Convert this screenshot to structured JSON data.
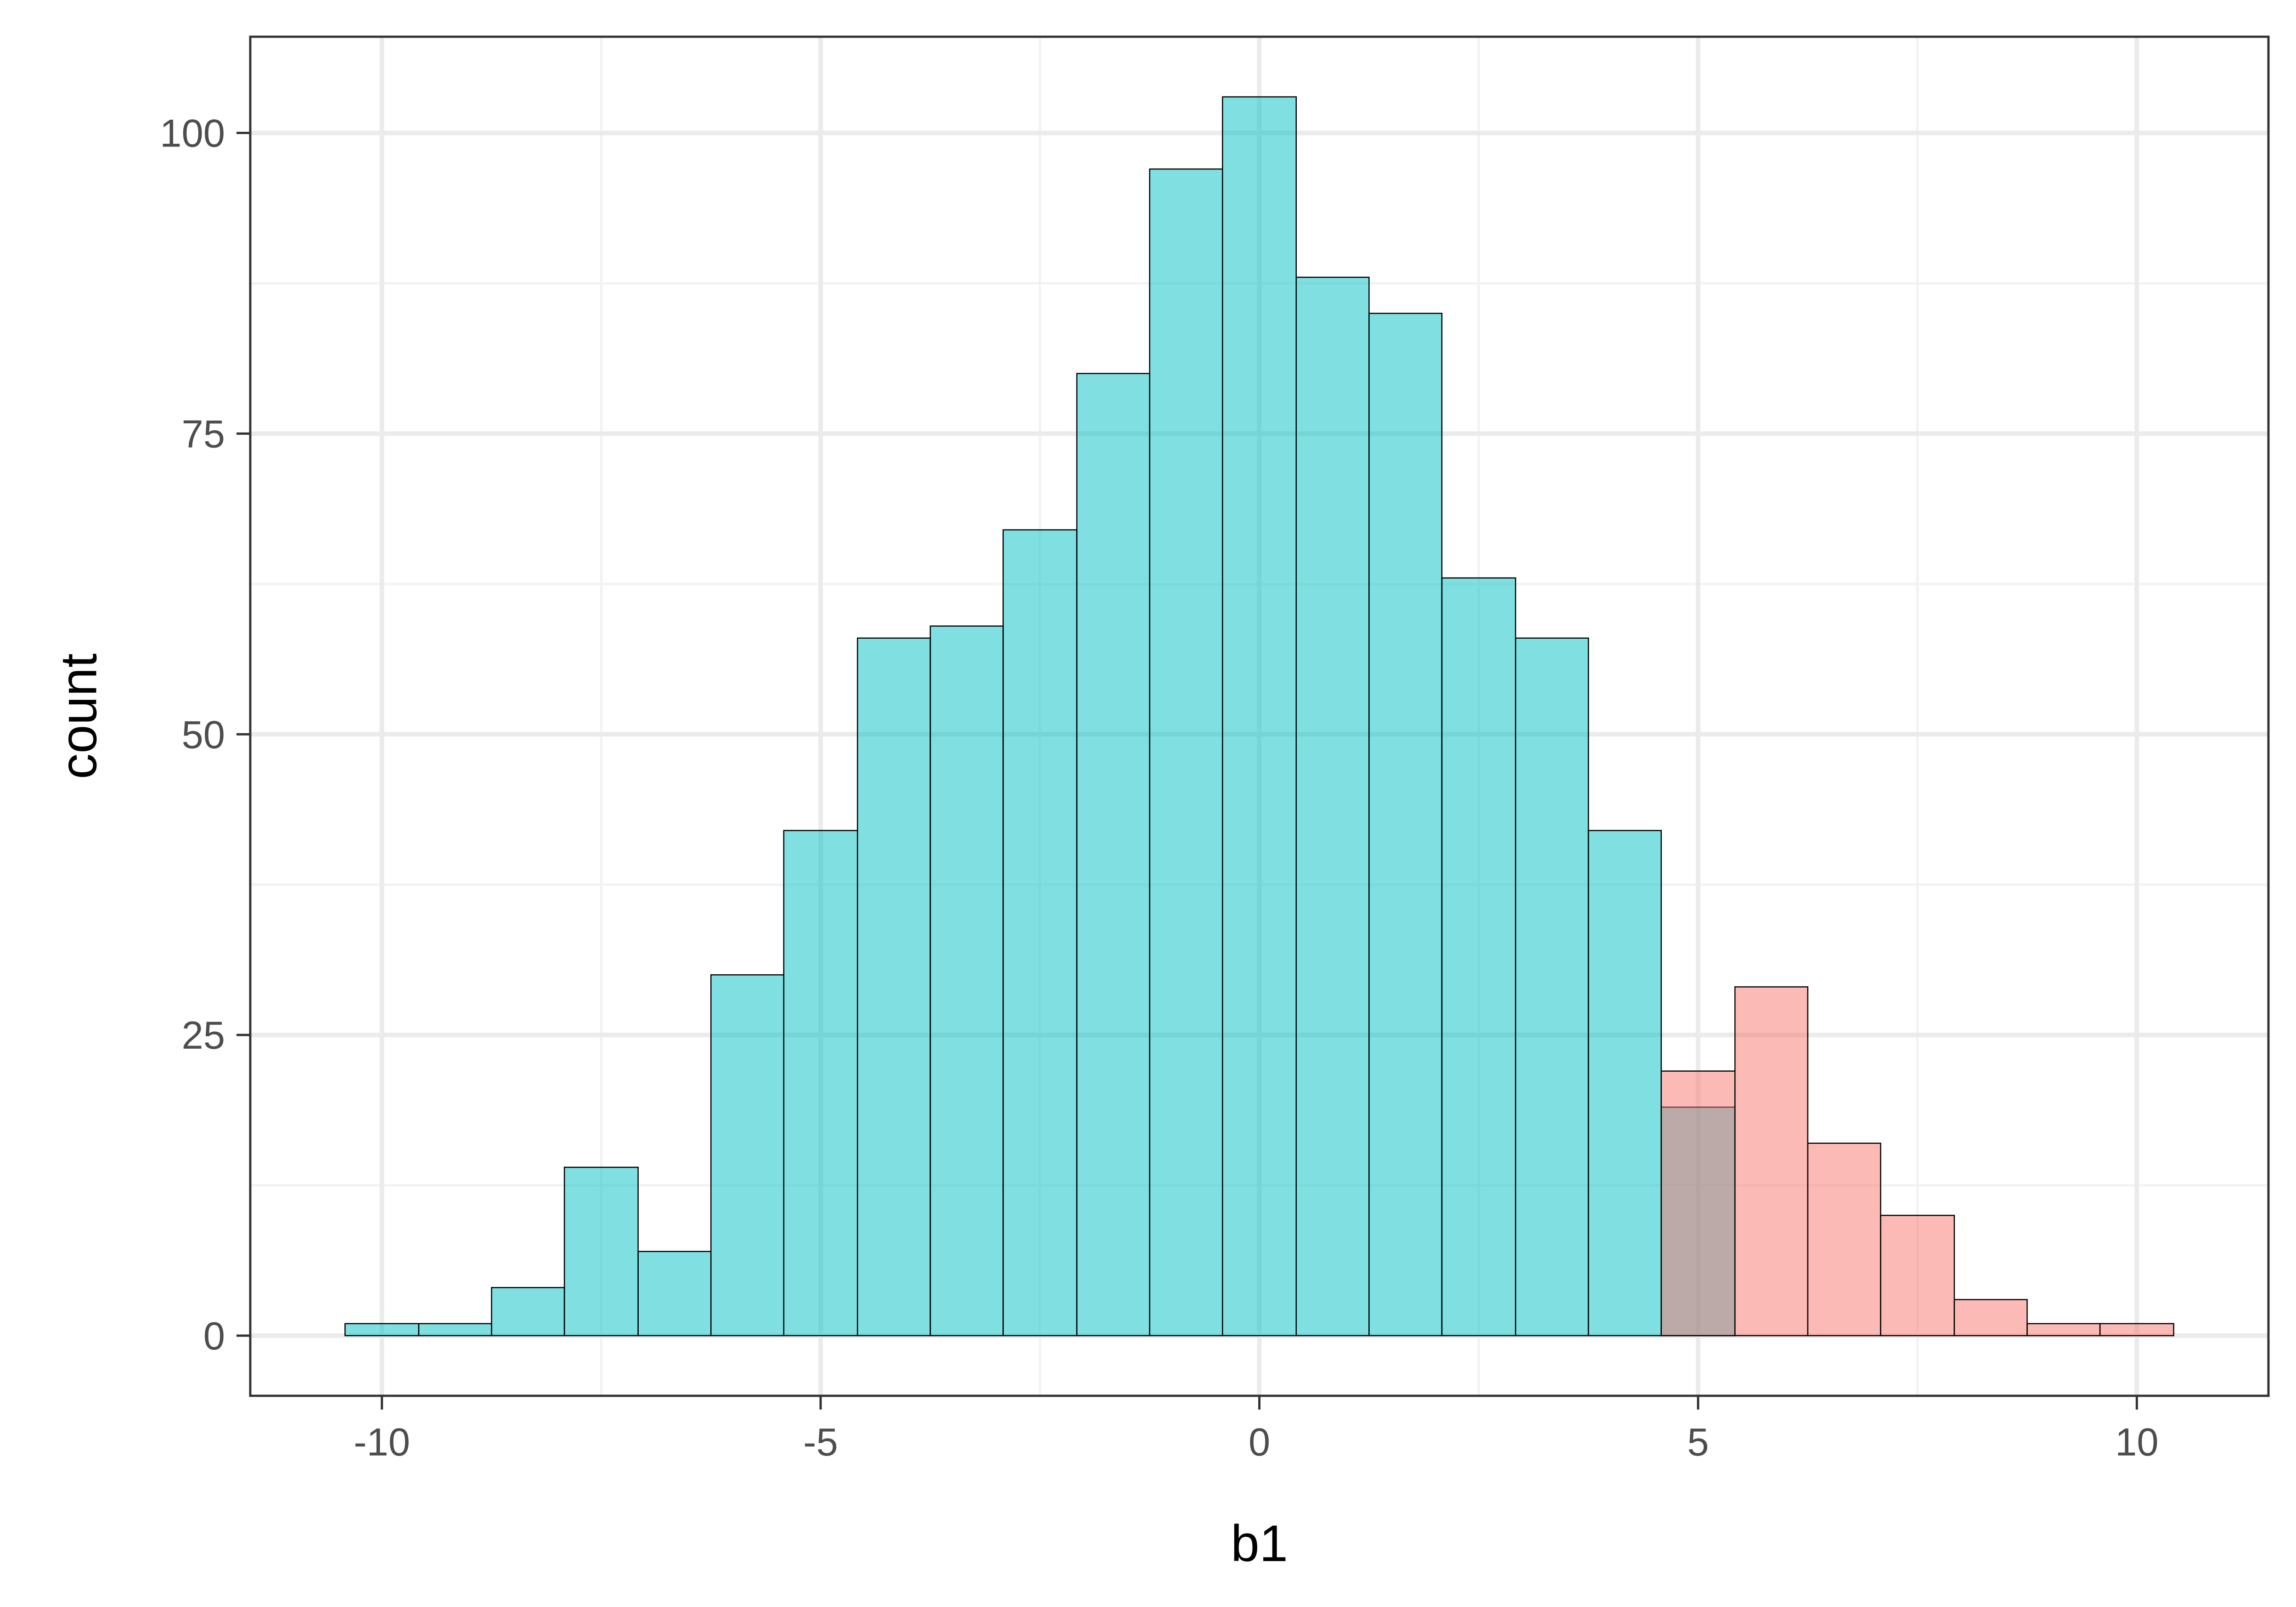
{
  "chart_data": {
    "type": "bar",
    "subtype": "histogram",
    "title": "",
    "xlabel": "b1",
    "ylabel": "count",
    "xlim": [
      -11.5,
      11.5
    ],
    "ylim": [
      -5,
      108
    ],
    "x_ticks": [
      -10,
      -5,
      0,
      5,
      10
    ],
    "y_ticks": [
      0,
      25,
      50,
      75,
      100
    ],
    "grid": true,
    "bin_width": 0.833,
    "series": [
      {
        "fill": "#00BFC4",
        "bins": [
          {
            "x0": -10.42,
            "x1": -9.58,
            "count": 1
          },
          {
            "x0": -9.58,
            "x1": -8.75,
            "count": 1
          },
          {
            "x0": -8.75,
            "x1": -7.92,
            "count": 4
          },
          {
            "x0": -7.92,
            "x1": -7.08,
            "count": 14
          },
          {
            "x0": -7.08,
            "x1": -6.25,
            "count": 7
          },
          {
            "x0": -6.25,
            "x1": -5.42,
            "count": 30
          },
          {
            "x0": -5.42,
            "x1": -4.58,
            "count": 42
          },
          {
            "x0": -4.58,
            "x1": -3.75,
            "count": 58
          },
          {
            "x0": -3.75,
            "x1": -2.92,
            "count": 59
          },
          {
            "x0": -2.92,
            "x1": -2.08,
            "count": 67
          },
          {
            "x0": -2.08,
            "x1": -1.25,
            "count": 80
          },
          {
            "x0": -1.25,
            "x1": -0.42,
            "count": 97
          },
          {
            "x0": -0.42,
            "x1": 0.42,
            "count": 103
          },
          {
            "x0": 0.42,
            "x1": 1.25,
            "count": 88
          },
          {
            "x0": 1.25,
            "x1": 2.08,
            "count": 85
          },
          {
            "x0": 2.08,
            "x1": 2.92,
            "count": 63
          },
          {
            "x0": 2.92,
            "x1": 3.75,
            "count": 58
          },
          {
            "x0": 3.75,
            "x1": 4.58,
            "count": 42
          },
          {
            "x0": 4.58,
            "x1": 5.42,
            "count": 19
          }
        ]
      },
      {
        "fill": "#F8766D",
        "bins": [
          {
            "x0": 4.58,
            "x1": 5.42,
            "count": 22
          },
          {
            "x0": 5.42,
            "x1": 6.25,
            "count": 29
          },
          {
            "x0": 6.25,
            "x1": 7.08,
            "count": 16
          },
          {
            "x0": 7.08,
            "x1": 7.92,
            "count": 10
          },
          {
            "x0": 7.92,
            "x1": 8.75,
            "count": 3
          },
          {
            "x0": 8.75,
            "x1": 9.58,
            "count": 1
          },
          {
            "x0": 9.58,
            "x1": 10.42,
            "count": 1
          }
        ]
      }
    ]
  },
  "colors": {
    "panel_border": "#333333",
    "grid_major": "#ebebeb",
    "grid_minor": "#f2f2f2",
    "bar_outline": "#000000",
    "bar_opacity": 0.5
  }
}
